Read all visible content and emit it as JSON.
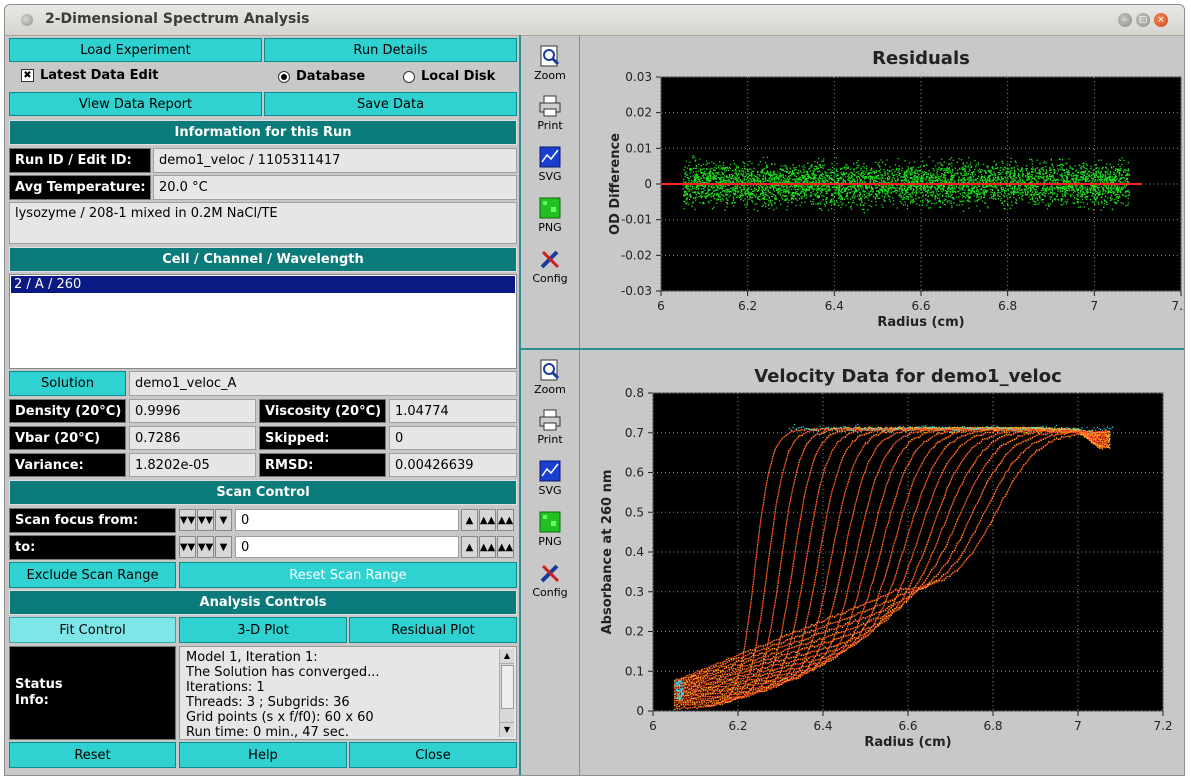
{
  "window": {
    "title": "2-Dimensional Spectrum Analysis"
  },
  "buttons": {
    "load_experiment": "Load Experiment",
    "run_details": "Run Details",
    "view_data_report": "View Data Report",
    "save_data": "Save Data",
    "solution": "Solution",
    "exclude_scan_range": "Exclude Scan Range",
    "reset_scan_range": "Reset Scan Range",
    "fit_control": "Fit Control",
    "plot_3d": "3-D Plot",
    "residual_plot": "Residual Plot",
    "reset": "Reset",
    "help": "Help",
    "close": "Close"
  },
  "options": {
    "latest_data_edit": "Latest Data Edit",
    "database": "Database",
    "local_disk": "Local Disk"
  },
  "run_info": {
    "header": "Information for this Run",
    "run_id_label": "Run ID / Edit ID:",
    "run_id_value": "demo1_veloc / 1105311417",
    "avg_temp_label": "Avg Temperature:",
    "avg_temp_value": "20.0 °C",
    "description": "lysozyme / 208-1 mixed in 0.2M NaCl/TE"
  },
  "ccw": {
    "header": "Cell / Channel / Wavelength",
    "items": [
      "2 / A / 260"
    ]
  },
  "solution": {
    "name": "demo1_veloc_A",
    "density_label": "Density (20°C)",
    "density_value": "0.9996",
    "viscosity_label": "Viscosity (20°C)",
    "viscosity_value": "1.04774",
    "vbar_label": "Vbar (20°C)",
    "vbar_value": "0.7286",
    "skipped_label": "Skipped:",
    "skipped_value": "0",
    "variance_label": "Variance:",
    "variance_value": "1.8202e-05",
    "rmsd_label": "RMSD:",
    "rmsd_value": "0.00426639"
  },
  "scan_control": {
    "header": "Scan Control",
    "from_label": "Scan focus from:",
    "from_value": "0",
    "to_label": "to:",
    "to_value": "0"
  },
  "analysis": {
    "header": "Analysis Controls",
    "status_label": "Status Info:",
    "status_lines": [
      "Model 1,  Iteration 1:",
      "The Solution has converged...",
      "Iterations:  1",
      "Threads:  3 ;   Subgrids:  36",
      "Grid points (s x f/f0):  60 x 60",
      "Run time:  0 min., 47 sec."
    ]
  },
  "tools": [
    "Zoom",
    "Print",
    "SVG",
    "PNG",
    "Config"
  ],
  "tool_icons": [
    "zoom-icon",
    "print-icon",
    "svg-icon",
    "png-icon",
    "config-icon"
  ],
  "chart_data": [
    {
      "type": "scatter",
      "title": "Residuals",
      "xlabel": "Radius (cm)",
      "ylabel": "OD Difference",
      "xlim": [
        6,
        7.2
      ],
      "ylim": [
        -0.03,
        0.03
      ],
      "x_ticks": [
        "6",
        "6.2",
        "6.4",
        "6.6",
        "6.8",
        "7",
        "7.2"
      ],
      "y_ticks": [
        "0.03",
        "0.02",
        "0.01",
        "0",
        "-0.01",
        "-0.02",
        "-0.03"
      ],
      "grid": true,
      "background": "#000000",
      "series": [
        {
          "color": "#1ee01e",
          "x_range": [
            6.05,
            7.08
          ],
          "y_spread": 0.0085
        },
        {
          "color": "#ff2020",
          "x": [
            6.0,
            7.11
          ],
          "y": [
            0,
            0
          ]
        }
      ]
    },
    {
      "type": "line",
      "title": "Velocity Data for demo1_veloc",
      "xlabel": "Radius (cm)",
      "ylabel": "Absorbance at 260 nm",
      "xlim": [
        6,
        7.2
      ],
      "ylim": [
        0,
        0.8
      ],
      "x_ticks": [
        "6",
        "6.2",
        "6.4",
        "6.6",
        "6.8",
        "7",
        "7.2"
      ],
      "y_ticks": [
        "0.8",
        "0.7",
        "0.6",
        "0.5",
        "0.4",
        "0.3",
        "0.2",
        "0.1",
        "0"
      ],
      "grid": true,
      "background": "#000000",
      "meniscus": 6.05,
      "plateau": 0.71,
      "boundary_midpoints": [
        6.24,
        6.27,
        6.3,
        6.33,
        6.36,
        6.39,
        6.42,
        6.45,
        6.48,
        6.51,
        6.54,
        6.57,
        6.6,
        6.63,
        6.66,
        6.69,
        6.72,
        6.75,
        6.78,
        6.81
      ],
      "colors": {
        "data": "#ffc020",
        "model": "#ff2020",
        "edge": "#30e0ff"
      }
    }
  ]
}
